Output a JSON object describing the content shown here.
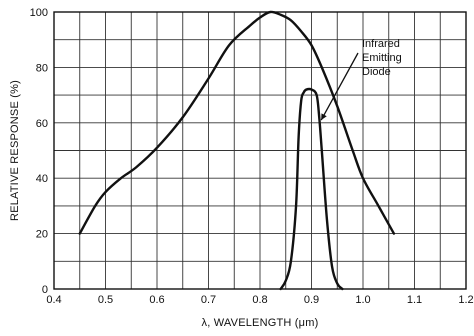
{
  "chart_data": {
    "type": "line",
    "title": "",
    "xlabel": "λ, WAVELENGTH (μm)",
    "ylabel": "RELATIVE RESPONSE (%)",
    "xlim": [
      0.4,
      1.2
    ],
    "ylim": [
      0,
      100
    ],
    "xticks": [
      "0.4",
      "0.5",
      "0.6",
      "0.7",
      "0.8",
      "0.9",
      "1.0",
      "1.1",
      "1.2"
    ],
    "yticks": [
      "0",
      "20",
      "40",
      "60",
      "80",
      "100"
    ],
    "grid": true,
    "series": [
      {
        "name": "",
        "color": "#111111",
        "x": [
          0.45,
          0.48,
          0.5,
          0.53,
          0.56,
          0.6,
          0.65,
          0.7,
          0.74,
          0.78,
          0.8,
          0.82,
          0.84,
          0.86,
          0.88,
          0.9,
          0.92,
          0.95,
          0.98,
          1.0,
          1.03,
          1.06
        ],
        "y": [
          20,
          30,
          35,
          40,
          44,
          51,
          62,
          76,
          88,
          95,
          98,
          100,
          99,
          97,
          93,
          88,
          80,
          66,
          50,
          40,
          30,
          20
        ]
      },
      {
        "name": "Infrared Emitting Diode",
        "color": "#111111",
        "x": [
          0.84,
          0.85,
          0.86,
          0.87,
          0.875,
          0.88,
          0.885,
          0.89,
          0.9,
          0.91,
          0.915,
          0.92,
          0.93,
          0.94,
          0.95,
          0.96
        ],
        "y": [
          0,
          3,
          10,
          30,
          55,
          68,
          71,
          72,
          72,
          70,
          62,
          50,
          25,
          8,
          2,
          0
        ]
      }
    ],
    "annotations": [
      {
        "lines": [
          "Infrared",
          "Emitting",
          "Diode"
        ],
        "points_to": {
          "x": 0.915,
          "y": 61
        }
      }
    ]
  }
}
